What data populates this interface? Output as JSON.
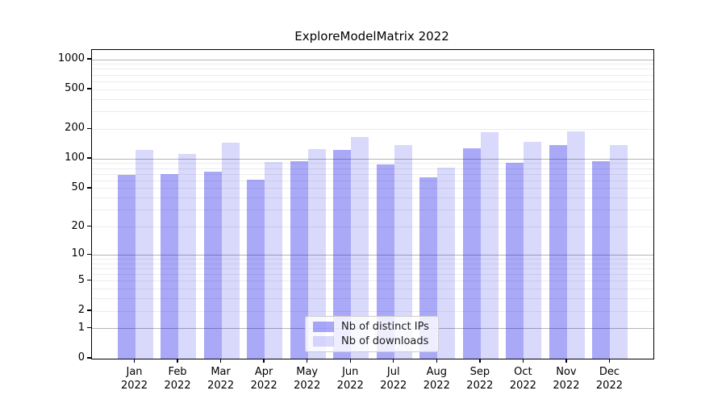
{
  "chart_data": {
    "type": "bar",
    "title": "ExploreModelMatrix 2022",
    "categories": [
      "Jan",
      "Feb",
      "Mar",
      "Apr",
      "May",
      "Jun",
      "Jul",
      "Aug",
      "Sep",
      "Oct",
      "Nov",
      "Dec"
    ],
    "category_year": "2022",
    "series": [
      {
        "name": "Nb of distinct IPs",
        "color": "rgba(10,10,235,0.35)",
        "values": [
          69,
          70,
          74,
          62,
          94,
          123,
          88,
          65,
          127,
          91,
          137,
          95
        ]
      },
      {
        "name": "Nb of downloads",
        "color": "rgba(10,10,235,0.155)",
        "values": [
          123,
          113,
          146,
          93,
          125,
          165,
          139,
          81,
          188,
          149,
          190,
          137
        ]
      }
    ],
    "yscale": "log1p",
    "yticks": [
      1000,
      500,
      200,
      100,
      50,
      20,
      10,
      5,
      2,
      1,
      0
    ],
    "ylim": [
      0,
      1000
    ],
    "grid": true,
    "legend_position": "lower center",
    "colors": {
      "grid_major": "#b4b4b4",
      "grid_minor": "#ececec",
      "axis": "#000000"
    }
  }
}
